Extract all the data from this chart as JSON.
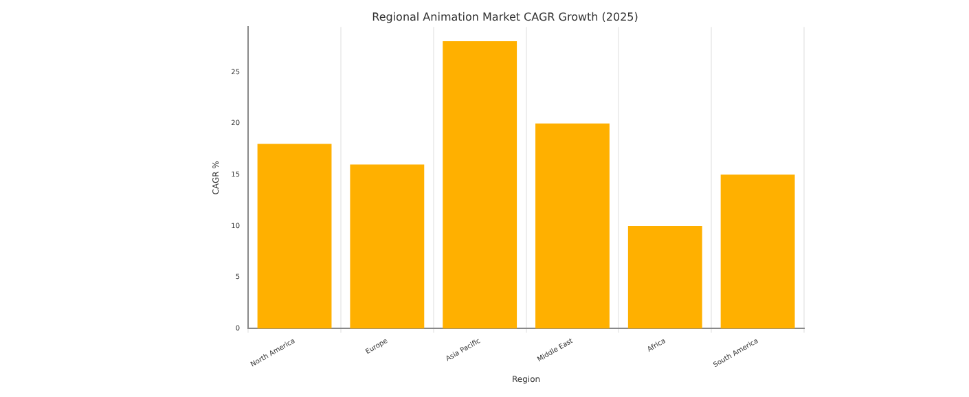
{
  "chart_data": {
    "type": "bar",
    "title": "Regional Animation Market CAGR Growth (2025)",
    "xlabel": "Region",
    "ylabel": "CAGR %",
    "categories": [
      "North America",
      "Europe",
      "Asia Pacific",
      "Middle East",
      "Africa",
      "South America"
    ],
    "values": [
      18,
      16,
      28,
      20,
      10,
      15
    ],
    "color": "#ffb000",
    "ylim": [
      0,
      29.4
    ],
    "yticks": [
      0,
      5,
      10,
      15,
      20,
      25
    ],
    "grid": "x"
  }
}
